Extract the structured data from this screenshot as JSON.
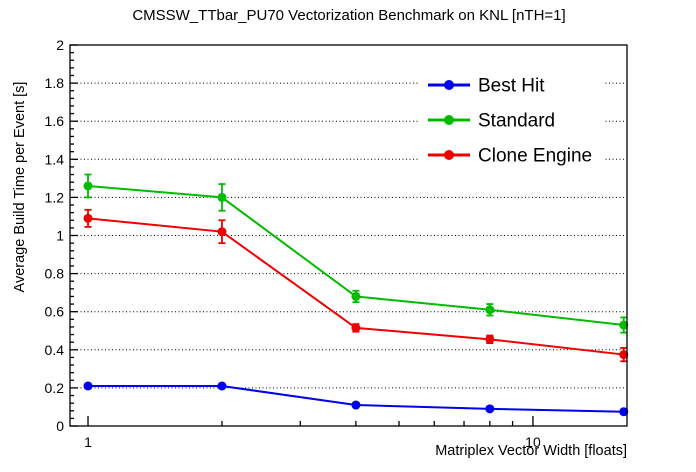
{
  "page": {
    "background": "#ffffff",
    "axis_color": "#000000",
    "grid_style": "dotted-horizontal"
  },
  "chart_data": {
    "type": "line",
    "title": "CMSSW_TTbar_PU70 Vectorization Benchmark on KNL [nTH=1]",
    "xlabel": "Matriplex Vector Width [floats]",
    "ylabel": "Average Build Time per Event [s]",
    "xscale": "log",
    "yscale": "linear",
    "xlim": [
      0.911,
      16.27
    ],
    "ylim": [
      0,
      2
    ],
    "x_major_ticks": [
      1,
      10
    ],
    "x_major_tick_labels": [
      "1",
      "10"
    ],
    "x_minor_ticks": [
      2,
      3,
      4,
      5,
      6,
      7,
      8,
      9
    ],
    "y_major_tick_step": 0.2,
    "y_minor_divisions": 5,
    "grid": "horizontal dotted at each 0.2",
    "legend_position": "top-right-inside",
    "x": [
      1,
      2,
      4,
      8,
      16
    ],
    "series": [
      {
        "name": "Best Hit",
        "color": "#0000ee",
        "marker": "filled-circle",
        "values": [
          0.21,
          0.21,
          0.11,
          0.09,
          0.075
        ],
        "errors": [
          0.012,
          0.012,
          0.01,
          0.01,
          0.01
        ]
      },
      {
        "name": "Standard",
        "color": "#00bb00",
        "marker": "filled-circle",
        "values": [
          1.26,
          1.2,
          0.68,
          0.61,
          0.53
        ],
        "errors": [
          0.06,
          0.07,
          0.03,
          0.03,
          0.04
        ]
      },
      {
        "name": "Clone Engine",
        "color": "#ee0000",
        "marker": "filled-circle",
        "values": [
          1.09,
          1.02,
          0.515,
          0.455,
          0.375
        ],
        "errors": [
          0.045,
          0.06,
          0.02,
          0.02,
          0.035
        ]
      }
    ]
  }
}
